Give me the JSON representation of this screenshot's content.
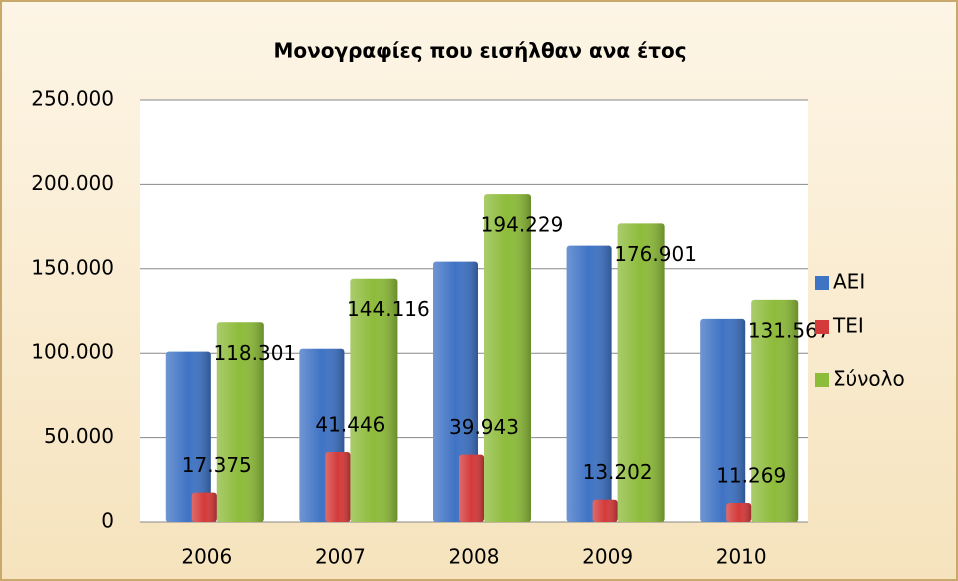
{
  "chart_data": {
    "type": "bar",
    "title": "Μονογραφίες που εισήλθαν ανα έτος",
    "categories": [
      "2006",
      "2007",
      "2008",
      "2009",
      "2010"
    ],
    "series": [
      {
        "name": "ΑΕΙ",
        "color": "#3f73c4",
        "values": [
          100926,
          102670,
          154286,
          163699,
          120298
        ]
      },
      {
        "name": "ΤΕΙ",
        "color": "#d43a3a",
        "values": [
          17375,
          41446,
          39943,
          13202,
          11269
        ],
        "value_labels": [
          "17.375",
          "41.446",
          "39.943",
          "13.202",
          "11.269"
        ]
      },
      {
        "name": "Σύνολο",
        "color": "#8dbb3a",
        "values": [
          118301,
          144116,
          194229,
          176901,
          131567
        ],
        "value_labels": [
          "118.301",
          "144.116",
          "194.229",
          "176.901",
          "131.567"
        ]
      }
    ],
    "ylim": [
      0,
      250000
    ],
    "yticks": [
      0,
      {
        "value": 50000,
        "label": "50.000"
      },
      {
        "value": 100000,
        "label": "100.000"
      },
      {
        "value": 150000,
        "label": "150.000"
      },
      {
        "value": 200000,
        "label": "200.000"
      },
      {
        "value": 250000,
        "label": "250.000"
      }
    ],
    "grid": true,
    "legend": "right"
  }
}
